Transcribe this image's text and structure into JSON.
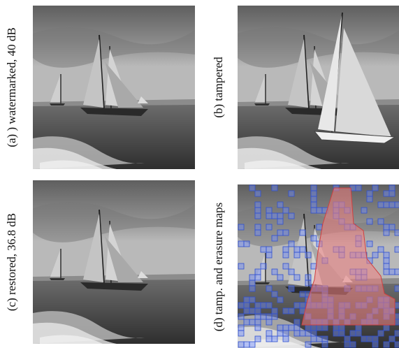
{
  "panels": [
    {
      "caption": "(a) ) watermarked, 40 dB"
    },
    {
      "caption": "(b) tampered"
    },
    {
      "caption": "(c) restored, 36.8 dB"
    },
    {
      "caption": "(d) tamp. and erasure maps"
    }
  ]
}
